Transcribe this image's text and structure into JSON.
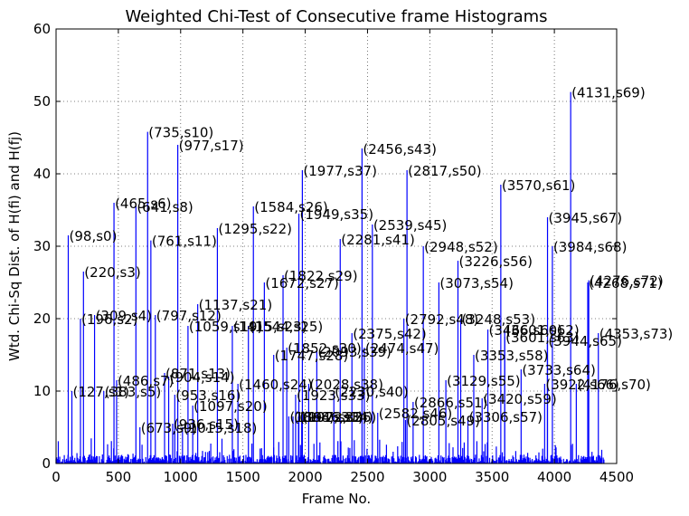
{
  "chart_data": {
    "type": "line",
    "title": "Weighted Chi-Test of Consecutive frame Histograms",
    "xlabel": "Frame No.",
    "ylabel": "Wtd. Chi-Sq Dist. of H(fi) and H(fj)",
    "xlim": [
      0,
      4500
    ],
    "ylim": [
      0,
      60
    ],
    "xticks": [
      0,
      500,
      1000,
      1500,
      2000,
      2500,
      3000,
      3500,
      4000,
      4500
    ],
    "yticks": [
      0,
      10,
      20,
      30,
      40,
      50,
      60
    ],
    "grid": true,
    "series_color": "#0000ff",
    "peaks": [
      {
        "x": 98,
        "y": 31.5,
        "label": "(98,s0)"
      },
      {
        "x": 127,
        "y": 10,
        "label": "(127,s1)"
      },
      {
        "x": 196,
        "y": 20,
        "label": "(196,s2)"
      },
      {
        "x": 220,
        "y": 26.5,
        "label": "(220,s3)"
      },
      {
        "x": 309,
        "y": 20.5,
        "label": "(309,s4)"
      },
      {
        "x": 383,
        "y": 10,
        "label": "(383,s5)"
      },
      {
        "x": 465,
        "y": 36,
        "label": "(465,s6)"
      },
      {
        "x": 486,
        "y": 11.5,
        "label": "(486,s7)"
      },
      {
        "x": 641,
        "y": 35.5,
        "label": "(641,s8)"
      },
      {
        "x": 673,
        "y": 5,
        "label": "(673,s9)"
      },
      {
        "x": 735,
        "y": 45.8,
        "label": "(735,s10)"
      },
      {
        "x": 761,
        "y": 30.8,
        "label": "(761,s11)"
      },
      {
        "x": 797,
        "y": 20.5,
        "label": "(797,s12)"
      },
      {
        "x": 871,
        "y": 12.5,
        "label": "(871,s13)"
      },
      {
        "x": 904,
        "y": 12,
        "label": "(904,s14)"
      },
      {
        "x": 936,
        "y": 5.5,
        "label": "(936,s15)"
      },
      {
        "x": 953,
        "y": 9.5,
        "label": "(953,s16)"
      },
      {
        "x": 977,
        "y": 44,
        "label": "(977,s17)"
      },
      {
        "x": 1015,
        "y": 5,
        "label": "(1015,s18)"
      },
      {
        "x": 1059,
        "y": 19,
        "label": "(1059,s19)"
      },
      {
        "x": 1097,
        "y": 8,
        "label": "(1097,s20)"
      },
      {
        "x": 1137,
        "y": 22,
        "label": "(1137,s21)"
      },
      {
        "x": 1295,
        "y": 32.5,
        "label": "(1295,s22)"
      },
      {
        "x": 1415,
        "y": 19,
        "label": "(1415,s23)"
      },
      {
        "x": 1460,
        "y": 11,
        "label": "(1460,s24)"
      },
      {
        "x": 1544,
        "y": 19,
        "label": "(1544,s25)"
      },
      {
        "x": 1584,
        "y": 35.5,
        "label": "(1584,s26)"
      },
      {
        "x": 1672,
        "y": 25,
        "label": "(1672,s27)"
      },
      {
        "x": 1747,
        "y": 15,
        "label": "(1747,s28)"
      },
      {
        "x": 1822,
        "y": 26,
        "label": "(1822,s29)"
      },
      {
        "x": 1852,
        "y": 16,
        "label": "(1852,s30)"
      },
      {
        "x": 1868,
        "y": 6.5,
        "label": "(1868,s31)"
      },
      {
        "x": 1902,
        "y": 6.5,
        "label": "(1902,s32)"
      },
      {
        "x": 1923,
        "y": 9.5,
        "label": "(1923,s33)"
      },
      {
        "x": 1946,
        "y": 6.5,
        "label": "(1946,s34)"
      },
      {
        "x": 1949,
        "y": 34.5,
        "label": "(1949,s35)"
      },
      {
        "x": 1972,
        "y": 6.5,
        "label": "(1972,s36)"
      },
      {
        "x": 1977,
        "y": 40.5,
        "label": "(1977,s37)"
      },
      {
        "x": 2028,
        "y": 11,
        "label": "(2028,s38)"
      },
      {
        "x": 2230,
        "y": 10,
        "label": "(2230,s40)"
      },
      {
        "x": 2281,
        "y": 31,
        "label": "(2281,s41)"
      },
      {
        "x": 2375,
        "y": 18,
        "label": "(2375,s42)"
      },
      {
        "x": 2456,
        "y": 43.5,
        "label": "(2456,s43)"
      },
      {
        "x": 2539,
        "y": 33,
        "label": "(2539,s45)"
      },
      {
        "x": 2582,
        "y": 7,
        "label": "(2582,s46)"
      },
      {
        "x": 2474,
        "y": 16,
        "label": "(2474,s47)"
      },
      {
        "x": 2805,
        "y": 6,
        "label": "(2805,s49)"
      },
      {
        "x": 2817,
        "y": 40.5,
        "label": "(2817,s50)"
      },
      {
        "x": 2866,
        "y": 8.5,
        "label": "(2866,s51)"
      },
      {
        "x": 2948,
        "y": 30,
        "label": "(2948,s52)"
      },
      {
        "x": 3248,
        "y": 20,
        "label": "(3248,s53)"
      },
      {
        "x": 3073,
        "y": 25,
        "label": "(3073,s54)"
      },
      {
        "x": 3129,
        "y": 11.5,
        "label": "(3129,s55)"
      },
      {
        "x": 3226,
        "y": 28,
        "label": "(3226,s56)"
      },
      {
        "x": 3306,
        "y": 6.5,
        "label": "(3306,s57)"
      },
      {
        "x": 3353,
        "y": 15,
        "label": "(3353,s58)"
      },
      {
        "x": 3420,
        "y": 9,
        "label": "(3420,s59)"
      },
      {
        "x": 3570,
        "y": 38.5,
        "label": "(3570,s61)"
      },
      {
        "x": 3601,
        "y": 18.5,
        "label": "(3601,s62)"
      },
      {
        "x": 3733,
        "y": 13,
        "label": "(3733,s64)"
      },
      {
        "x": 3922,
        "y": 11,
        "label": "(3922,s66)"
      },
      {
        "x": 3945,
        "y": 34,
        "label": "(3945,s67)"
      },
      {
        "x": 3984,
        "y": 30,
        "label": "(3984,s68)"
      },
      {
        "x": 4131,
        "y": 51.3,
        "label": "(4131,s69)"
      },
      {
        "x": 4176,
        "y": 11,
        "label": "(4176,s70)"
      },
      {
        "x": 4268,
        "y": 25,
        "label": "(4268,s71)"
      },
      {
        "x": 4276,
        "y": 25.3,
        "label": "(4276,s72)"
      },
      {
        "x": 4353,
        "y": 18,
        "label": "(4353,s73)"
      },
      {
        "x": 2093,
        "y": 15.5,
        "label": "(2093,s39)"
      },
      {
        "x": 2792,
        "y": 20,
        "label": "(2792,s48)"
      },
      {
        "x": 3466,
        "y": 18.5,
        "label": "(3466,s60)"
      },
      {
        "x": 3944,
        "y": 17,
        "label": "(3944,s65)"
      },
      {
        "x": 3601,
        "y": 17.5,
        "label": "(3601,s63)"
      }
    ]
  }
}
